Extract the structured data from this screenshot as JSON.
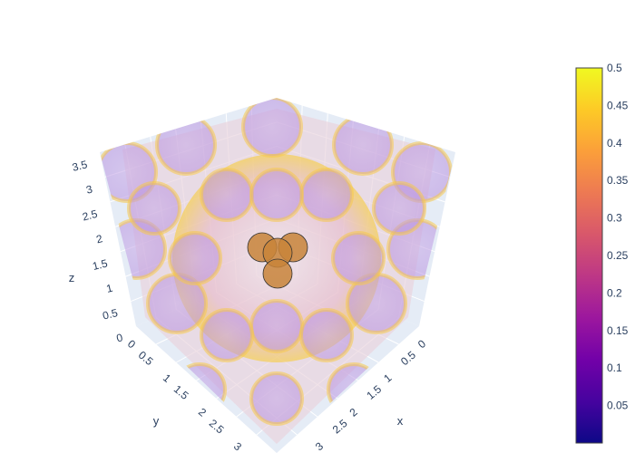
{
  "chart_data": {
    "type": "isosurface-3d",
    "title": "",
    "axes": {
      "x": {
        "label": "x",
        "ticks": [
          "0",
          "0.5",
          "1",
          "1.5",
          "2",
          "2.5",
          "3"
        ],
        "range": [
          0,
          3.5
        ]
      },
      "y": {
        "label": "y",
        "ticks": [
          "0",
          "0.5",
          "1",
          "1.5",
          "2",
          "2.5",
          "3"
        ],
        "range": [
          0,
          3.5
        ]
      },
      "z": {
        "label": "z",
        "ticks": [
          "0",
          "0.5",
          "1",
          "1.5",
          "2",
          "2.5",
          "3",
          "3.5"
        ],
        "range": [
          0,
          3.5
        ]
      }
    },
    "colorbar": {
      "colorscale": "plasma",
      "range": [
        0,
        0.5
      ],
      "ticks": [
        "0.05",
        "0.1",
        "0.15",
        "0.2",
        "0.25",
        "0.3",
        "0.35",
        "0.4",
        "0.45",
        "0.5"
      ],
      "colors": [
        "#0d0887",
        "#46039f",
        "#7201a8",
        "#9c179e",
        "#bd3786",
        "#d8576b",
        "#ed7953",
        "#fb9f3a",
        "#fdca26",
        "#f0f921"
      ]
    },
    "atoms": {
      "color": "#c8843a",
      "count": 4
    },
    "grid": true,
    "background": "#e5ecf6"
  }
}
